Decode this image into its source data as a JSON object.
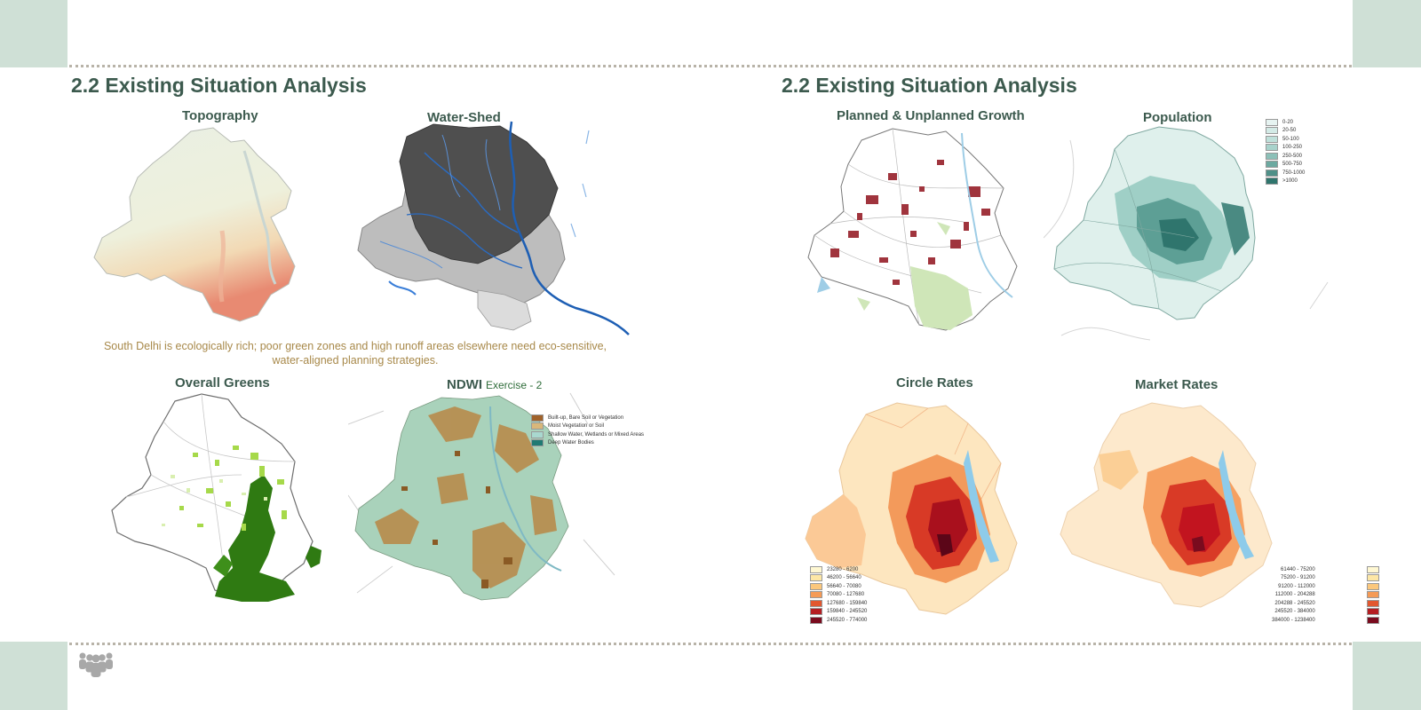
{
  "slides": {
    "left": {
      "title": "2.2 Existing Situation Analysis",
      "maps": {
        "topography": "Topography",
        "watershed": "Water-Shed",
        "greens": "Overall Greens",
        "ndwi": "NDWI",
        "ndwi_sub": "Exercise - 2"
      },
      "caption_line1": "South Delhi is ecologically rich; poor green zones and high runoff areas elsewhere need eco-sensitive,",
      "caption_line2": "water-aligned planning strategies.",
      "ndwi_legend": [
        {
          "label": "Built-up, Bare Soil or Vegetation",
          "color": "#a0622a"
        },
        {
          "label": "Moist Vegetation or Soil",
          "color": "#d9b77a"
        },
        {
          "label": "Shallow Water, Wetlands or Mixed Areas",
          "color": "#a9d8cf"
        },
        {
          "label": "Deep Water Bodies",
          "color": "#1f7a73"
        }
      ]
    },
    "right": {
      "title": "2.2 Existing Situation Analysis",
      "maps": {
        "growth": "Planned & Unplanned Growth",
        "population": "Population",
        "circle": "Circle Rates",
        "market": "Market Rates"
      },
      "population_legend": [
        {
          "label": "0-20",
          "color": "#e6f3f1"
        },
        {
          "label": "20-50",
          "color": "#d3eae6"
        },
        {
          "label": "50-100",
          "color": "#bfe0da"
        },
        {
          "label": "100-250",
          "color": "#a8d2cb"
        },
        {
          "label": "250-500",
          "color": "#8cc0b8"
        },
        {
          "label": "500-750",
          "color": "#6ca9a0"
        },
        {
          "label": "750-1000",
          "color": "#4f9088"
        },
        {
          "label": ">1000",
          "color": "#2f756d"
        }
      ],
      "circle_legend": [
        {
          "label": "23280 - 6200",
          "color": "#fff8d2"
        },
        {
          "label": "46200 - 56640",
          "color": "#fde7a6"
        },
        {
          "label": "56640 - 70080",
          "color": "#fbc77c"
        },
        {
          "label": "70080 - 127680",
          "color": "#f59a55"
        },
        {
          "label": "127680 - 159840",
          "color": "#e2572f"
        },
        {
          "label": "159840 - 245520",
          "color": "#b51d22"
        },
        {
          "label": "245520 - 774000",
          "color": "#7a0b1e"
        }
      ],
      "market_legend": [
        {
          "label": "61440 - 75200",
          "color": "#fff8d2"
        },
        {
          "label": "75200 - 91200",
          "color": "#fde7a6"
        },
        {
          "label": "91200 - 112000",
          "color": "#fbc77c"
        },
        {
          "label": "112000 - 204288",
          "color": "#f59a55"
        },
        {
          "label": "204288 - 245520",
          "color": "#e2572f"
        },
        {
          "label": "245520 - 384000",
          "color": "#b51d22"
        },
        {
          "label": "384000 - 1238400",
          "color": "#7a0b1e"
        }
      ]
    }
  },
  "icons": {
    "footer": "people-group-icon"
  }
}
